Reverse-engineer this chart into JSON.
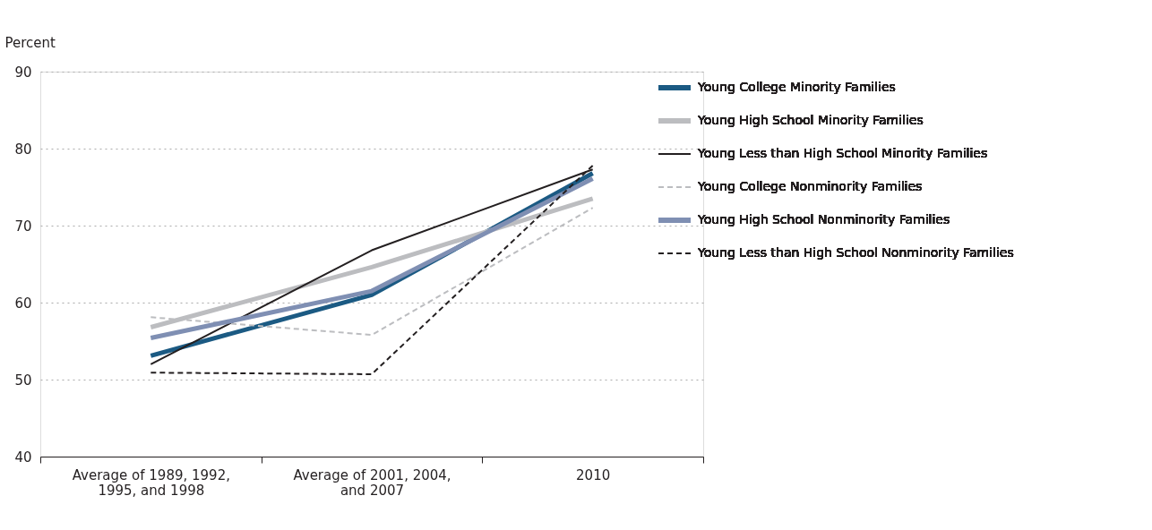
{
  "chart_data": {
    "type": "line",
    "ylabel": "Percent",
    "categories": [
      "Average of 1989, 1992, 1995, and 1998",
      "Average of 2001, 2004, and 2007",
      "2010"
    ],
    "series": [
      {
        "name": "Young College Minority Families",
        "color": "#1b5a83",
        "line_style": "solid",
        "values": [
          53.1,
          61.0,
          76.8
        ]
      },
      {
        "name": "Young High School Minority Families",
        "color": "#bcbdc0",
        "line_style": "solid",
        "values": [
          56.8,
          64.6,
          73.5
        ]
      },
      {
        "name": "Young Less than High School Minority Families",
        "color": "#231f20",
        "line_style": "solid",
        "values": [
          52.0,
          66.8,
          77.3
        ]
      },
      {
        "name": "Young College Nonminority Families",
        "color": "#bcbdc0",
        "line_style": "dashed",
        "values": [
          58.1,
          55.8,
          72.3
        ]
      },
      {
        "name": "Young High School Nonminority Families",
        "color": "#7f8fb3",
        "line_style": "solid",
        "values": [
          55.4,
          61.5,
          76.1
        ]
      },
      {
        "name": "Young Less than High School Nonminority Families",
        "color": "#231f20",
        "line_style": "dashed",
        "values": [
          50.9,
          50.7,
          77.8
        ]
      }
    ],
    "ylim": [
      40,
      90
    ],
    "yticks": [
      40,
      50,
      60,
      70,
      80,
      90
    ],
    "grid": "y",
    "legend": "top right"
  }
}
